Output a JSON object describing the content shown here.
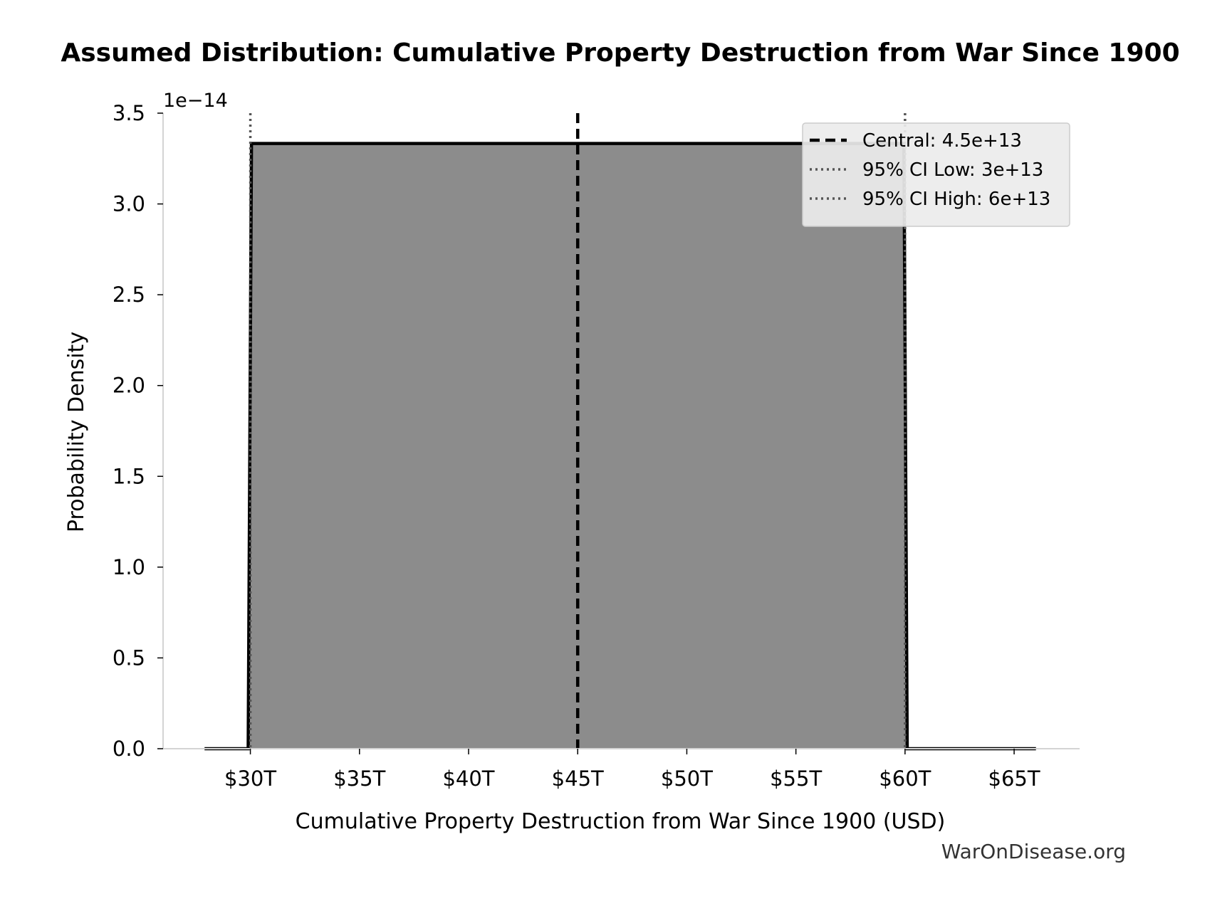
{
  "chart_data": {
    "type": "area",
    "title": "Assumed Distribution: Cumulative Property Destruction from War Since 1900",
    "xlabel": "Cumulative Property Destruction from War Since 1900 (USD)",
    "ylabel": "Probability Density",
    "y_offset_label": "1e−14",
    "watermark": "WarOnDisease.org",
    "xlim": [
      26000000000000,
      68000000000000
    ],
    "ylim": [
      0,
      3.5e-14
    ],
    "x_ticks": [
      {
        "value": 30000000000000,
        "label": "$30T"
      },
      {
        "value": 35000000000000,
        "label": "$35T"
      },
      {
        "value": 40000000000000,
        "label": "$40T"
      },
      {
        "value": 45000000000000,
        "label": "$45T"
      },
      {
        "value": 50000000000000,
        "label": "$50T"
      },
      {
        "value": 55000000000000,
        "label": "$55T"
      },
      {
        "value": 60000000000000,
        "label": "$60T"
      },
      {
        "value": 65000000000000,
        "label": "$65T"
      }
    ],
    "y_ticks": [
      {
        "value": 0,
        "label": "0.0"
      },
      {
        "value": 5e-15,
        "label": "0.5"
      },
      {
        "value": 1e-14,
        "label": "1.0"
      },
      {
        "value": 1.5e-14,
        "label": "1.5"
      },
      {
        "value": 2e-14,
        "label": "2.0"
      },
      {
        "value": 2.5e-14,
        "label": "2.5"
      },
      {
        "value": 3e-14,
        "label": "3.0"
      },
      {
        "value": 3.5e-14,
        "label": "3.5"
      }
    ],
    "series": [
      {
        "points": [
          {
            "x": 27900000000000,
            "y": 0
          },
          {
            "x": 29900000000000,
            "y": 0
          },
          {
            "x": 30050000000000,
            "y": 3.333e-14
          },
          {
            "x": 59950000000000,
            "y": 3.333e-14
          },
          {
            "x": 60100000000000,
            "y": 0
          },
          {
            "x": 66000000000000,
            "y": 0
          }
        ],
        "fill": "#8c8c8c",
        "stroke": "#000000"
      }
    ],
    "reference_lines": [
      {
        "x": 45000000000000,
        "label": "Central: 4.5e+13",
        "style": "dashed",
        "color": "#000000"
      },
      {
        "x": 30000000000000,
        "label": "95% CI Low: 3e+13",
        "style": "dotted",
        "color": "#555555"
      },
      {
        "x": 60000000000000,
        "label": "95% CI High: 6e+13",
        "style": "dotted",
        "color": "#555555"
      }
    ],
    "legend_position": "top-right",
    "grid": false
  }
}
